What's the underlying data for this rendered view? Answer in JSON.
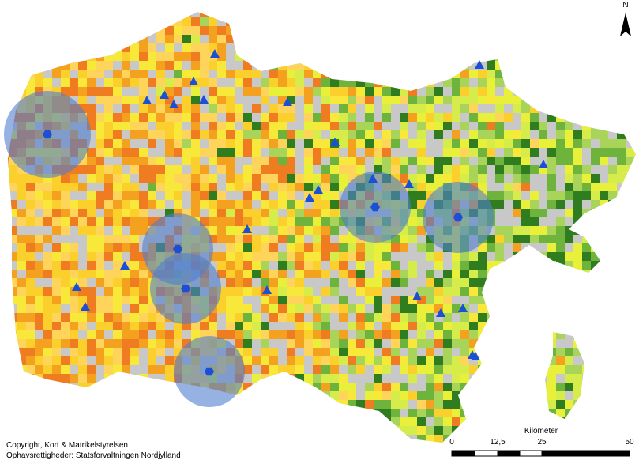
{
  "north_label": "N",
  "scale_bar": {
    "title": "Kilometer",
    "labels": [
      "0",
      "12,5",
      "25",
      "50"
    ]
  },
  "credits": [
    "Copyright, Kort & Matrikelstyrelsen",
    "Ophavsrettigheder: Statsforvaltningen Nordjylland"
  ]
}
